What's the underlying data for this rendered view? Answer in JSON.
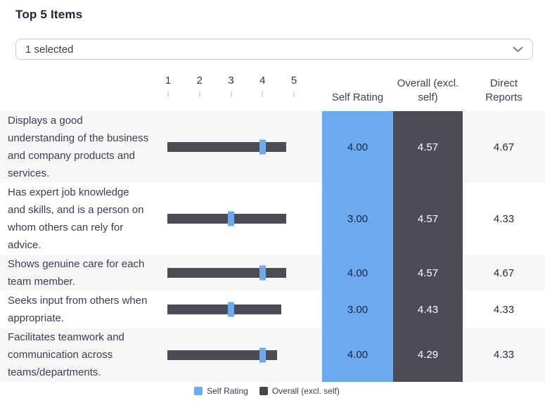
{
  "title": "Top 5 Items",
  "dropdown": {
    "value": "1 selected"
  },
  "table": {
    "scale": [
      "1",
      "2",
      "3",
      "4",
      "5"
    ],
    "columns": {
      "self": "Self Rating",
      "overall": "Overall (excl. self)",
      "direct": "Direct Reports"
    },
    "rows": [
      {
        "label": "Displays a good\nunderstanding of the business\nand company products and\nservices.",
        "self": "4.00",
        "overall": "4.57",
        "direct": "4.67"
      },
      {
        "label": "Has expert job knowledge\nand skills, and is a person on\nwhom others can rely for\nadvice.",
        "self": "3.00",
        "overall": "4.57",
        "direct": "4.33"
      },
      {
        "label": "Shows genuine care for each\nteam member.",
        "self": "4.00",
        "overall": "4.57",
        "direct": "4.67"
      },
      {
        "label": "Seeks input from others when\nappropriate.",
        "self": "3.00",
        "overall": "4.43",
        "direct": "4.33"
      },
      {
        "label": "Facilitates teamwork and\ncommunication across\nteams/departments.",
        "self": "4.00",
        "overall": "4.29",
        "direct": "4.33"
      }
    ]
  },
  "legend": [
    {
      "label": "Self Rating",
      "color": "#6CA9EE"
    },
    {
      "label": "Overall (excl. self)",
      "color": "#44454F"
    }
  ],
  "colors": {
    "self_rating_blue": "#6CA9EE",
    "overall_dark": "#4B4C56",
    "row_stripe": "#F7F7F8",
    "text_navy": "#3A3D52",
    "border_gray": "#C6C9CE"
  },
  "chart_data": {
    "type": "bar",
    "title": "Top 5 Items",
    "categories": [
      "Displays a good understanding of the business and company products and services.",
      "Has expert job knowledge and skills, and is a person on whom others can rely for advice.",
      "Shows genuine care for each team member.",
      "Seeks input from others when appropriate.",
      "Facilitates teamwork and communication across teams/departments."
    ],
    "series": [
      {
        "name": "Self Rating",
        "values": [
          4.0,
          3.0,
          4.0,
          3.0,
          4.0
        ]
      },
      {
        "name": "Overall (excl. self)",
        "values": [
          4.57,
          4.57,
          4.57,
          4.43,
          4.29
        ]
      },
      {
        "name": "Direct Reports",
        "values": [
          4.67,
          4.33,
          4.67,
          4.33,
          4.33
        ]
      }
    ],
    "xlabel": "",
    "ylabel": "",
    "axis_ticks": [
      1,
      2,
      3,
      4,
      5
    ],
    "xlim": [
      1,
      5
    ],
    "grid": false,
    "legend_entries": [
      "Self Rating",
      "Overall (excl. self)"
    ],
    "legend_position": "bottom"
  }
}
